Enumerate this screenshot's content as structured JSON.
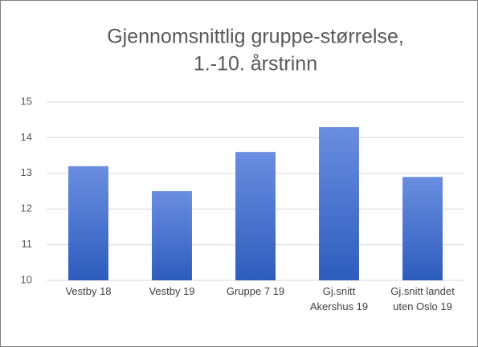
{
  "chart_data": {
    "type": "bar",
    "title": [
      "Gjennomsnittlig gruppe-størrelse,",
      "1.-10. årstrinn"
    ],
    "categories": [
      "Vestby 18",
      "Vestby 19",
      "Gruppe 7 19",
      "Gj.snitt Akershus 19",
      "Gj.snitt landet uten Oslo 19"
    ],
    "values": [
      13.2,
      12.5,
      13.6,
      14.3,
      12.9
    ],
    "color": "#4472c4",
    "ylim": [
      10,
      15
    ],
    "yticks": [
      10,
      11,
      12,
      13,
      14,
      15
    ],
    "grid": true
  }
}
